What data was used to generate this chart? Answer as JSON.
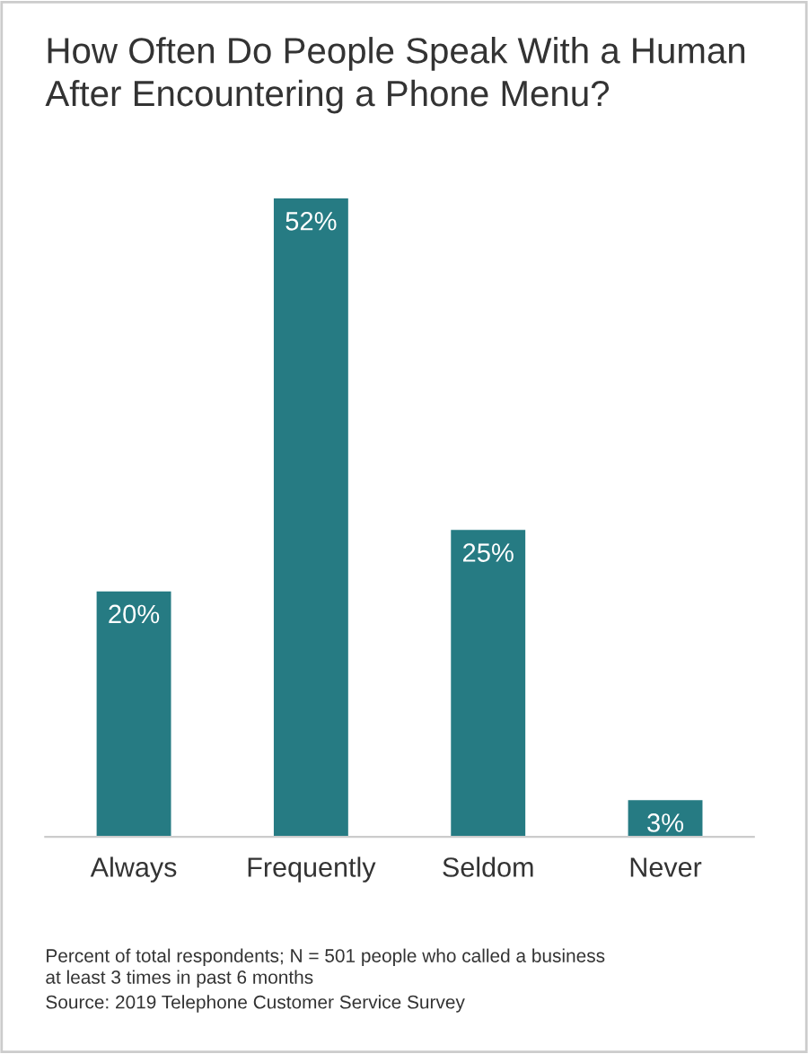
{
  "chart_data": {
    "type": "bar",
    "title": "How Often Do People Speak With a Human\nAfter Encountering a Phone Menu?",
    "categories": [
      "Always",
      "Frequently",
      "Seldom",
      "Never"
    ],
    "values": [
      20,
      52,
      25,
      3
    ],
    "value_labels": [
      "20%",
      "52%",
      "25%",
      "3%"
    ],
    "color": "#267b83",
    "grid": false,
    "annotations": [
      "Percent of total respondents; N = 501 people who called a business\nat least 3 times in past 6 months",
      "Source: 2019 Telephone Customer Service Survey"
    ]
  }
}
